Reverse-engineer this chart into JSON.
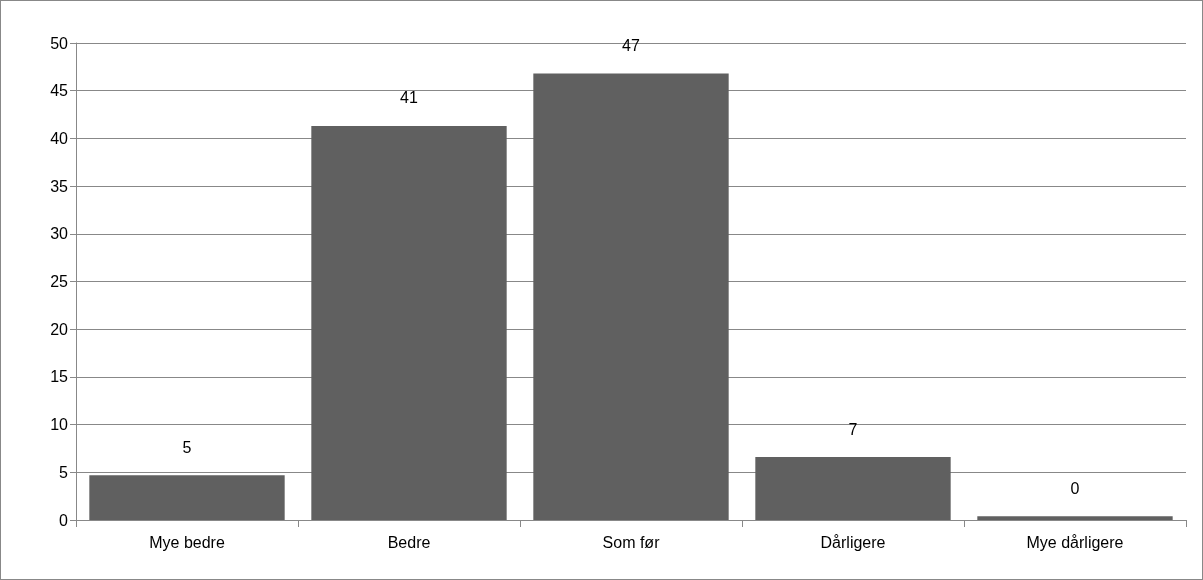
{
  "chart_data": {
    "type": "bar",
    "categories": [
      "Mye bedre",
      "Bedre",
      "Som før",
      "Dårligere",
      "Mye dårligere"
    ],
    "values": [
      4.7,
      41.3,
      46.8,
      6.6,
      0.4
    ],
    "value_labels": [
      "5",
      "41",
      "47",
      "7",
      "0"
    ],
    "color": "#606060",
    "ylim": [
      0,
      50
    ],
    "yticks": [
      0,
      5,
      10,
      15,
      20,
      25,
      30,
      35,
      40,
      45,
      50
    ],
    "grid": "y"
  }
}
